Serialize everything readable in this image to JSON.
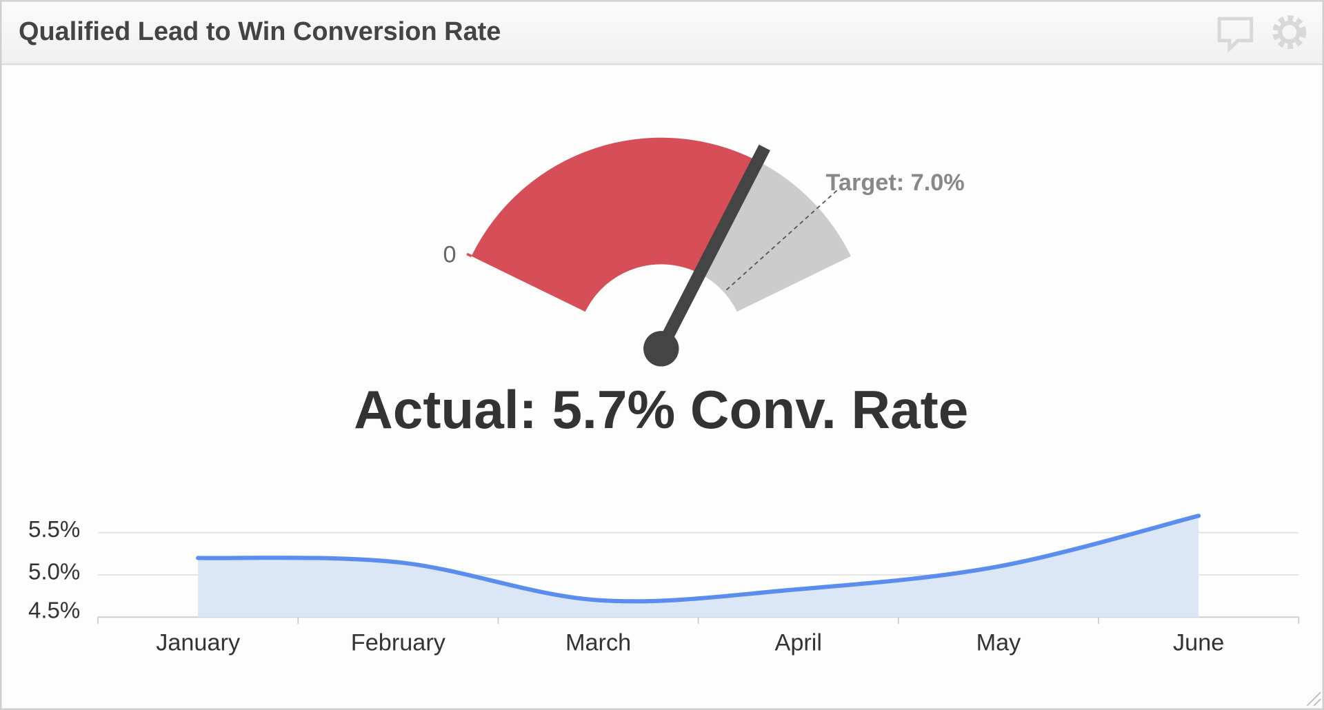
{
  "header": {
    "title": "Qualified Lead to Win Conversion Rate"
  },
  "chart_data": [
    {
      "type": "gauge",
      "values": [
        5.7
      ],
      "value_labels": [
        "Actual: 5.7% Conv. Rate"
      ],
      "target": {
        "value": 7.0,
        "label": "Target: 7.0%"
      },
      "ylim": [
        0,
        8
      ],
      "yticks": [
        0
      ],
      "color": "#d64e57",
      "track_color": "#cccccc",
      "needle_color": "#444444"
    },
    {
      "type": "area",
      "categories": [
        "January",
        "February",
        "March",
        "April",
        "May",
        "June"
      ],
      "values": [
        5.2,
        5.15,
        4.7,
        4.83,
        5.1,
        5.7
      ],
      "color": "#5b8def",
      "fill_color": "#dbe6f7",
      "ylim": [
        4.5,
        5.75
      ],
      "yticks": [
        {
          "value": 4.5,
          "label": "4.5%"
        },
        {
          "value": 5.0,
          "label": "5.0%"
        },
        {
          "value": 5.5,
          "label": "5.5%"
        }
      ],
      "grid": true
    }
  ]
}
